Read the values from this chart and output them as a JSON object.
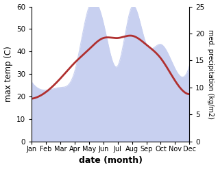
{
  "months": [
    "Jan",
    "Feb",
    "Mar",
    "Apr",
    "May",
    "Jun",
    "Jul",
    "Aug",
    "Sep",
    "Oct",
    "Nov",
    "Dec"
  ],
  "temperature": [
    19,
    22,
    28,
    35,
    41,
    46,
    46,
    47,
    43,
    37,
    27,
    21
  ],
  "precipitation": [
    11,
    9.5,
    10,
    13,
    25,
    22,
    14,
    25,
    18,
    18,
    13.5,
    14
  ],
  "temp_color": "#b03030",
  "precip_fill_color": "#c8d0f0",
  "title": "",
  "xlabel": "date (month)",
  "ylabel_left": "max temp (C)",
  "ylabel_right": "med. precipitation (kg/m2)",
  "ylim_left": [
    0,
    60
  ],
  "ylim_right": [
    0,
    25
  ],
  "bg_color": "#ffffff",
  "temp_linewidth": 2.0,
  "xlabel_fontsize": 9,
  "ylabel_fontsize": 8.5
}
